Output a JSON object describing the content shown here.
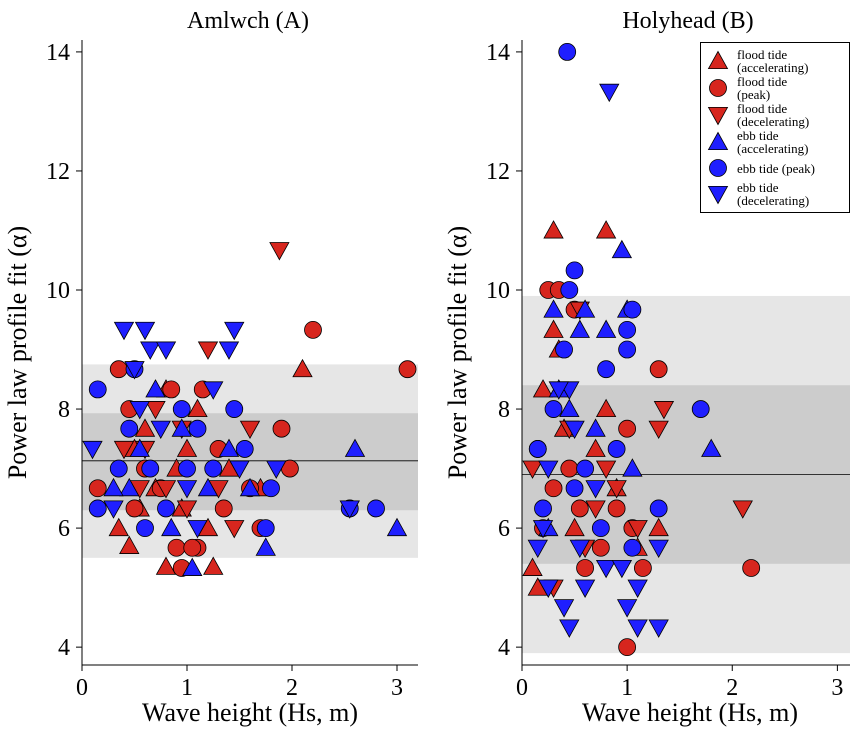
{
  "chart_data": [
    {
      "type": "scatter",
      "title": "Amlwch (A)",
      "xlabel": "Wave height (Hs, m)",
      "ylabel": "Power law profile fit (α)",
      "xlim": [
        0,
        3.2
      ],
      "ylim": [
        3.7,
        14.2
      ],
      "xticks": [
        0,
        1,
        2,
        3
      ],
      "yticks": [
        4,
        6,
        8,
        10,
        12,
        14
      ],
      "bands": [
        {
          "ymin": 5.5,
          "ymax": 8.75,
          "color": "#e6e6e6"
        },
        {
          "ymin": 6.3,
          "ymax": 7.93,
          "color": "#cccccc"
        }
      ],
      "mean_line": 7.13,
      "series": [
        {
          "marker": "triangle-up",
          "color": "#d7261e",
          "x": [
            0.45,
            0.35,
            0.8,
            1.25,
            0.55,
            0.7,
            0.9,
            1.0,
            0.6,
            0.8,
            1.4,
            2.1,
            1.7,
            1.2,
            0.5,
            1.1,
            0.95
          ],
          "y": [
            5.7,
            6.0,
            5.35,
            5.35,
            6.33,
            6.67,
            7.0,
            7.33,
            7.67,
            8.33,
            7.0,
            8.67,
            6.67,
            6.0,
            7.33,
            8.0,
            6.33
          ]
        },
        {
          "marker": "circle",
          "color": "#d7261e",
          "x": [
            0.15,
            0.35,
            0.45,
            0.9,
            0.95,
            1.1,
            1.05,
            1.15,
            0.85,
            1.35,
            1.7,
            1.9,
            1.98,
            2.2,
            3.1,
            0.6,
            0.75,
            1.3,
            0.5,
            1.6
          ],
          "y": [
            6.67,
            8.67,
            8.0,
            5.67,
            5.33,
            5.67,
            5.67,
            8.33,
            8.33,
            6.33,
            6.0,
            7.67,
            7.0,
            9.33,
            8.67,
            7.0,
            6.67,
            7.33,
            6.33,
            6.67
          ]
        },
        {
          "marker": "triangle-down",
          "color": "#d7261e",
          "x": [
            0.4,
            0.55,
            0.8,
            0.95,
            1.2,
            1.6,
            1.88,
            1.45,
            0.7,
            1.0,
            1.3,
            0.6
          ],
          "y": [
            7.33,
            6.67,
            6.67,
            7.67,
            9.0,
            7.67,
            10.67,
            6.0,
            8.0,
            6.33,
            6.67,
            7.33
          ]
        },
        {
          "marker": "triangle-up",
          "color": "#1f1fff",
          "x": [
            0.45,
            0.55,
            0.7,
            0.85,
            1.05,
            1.4,
            1.75,
            2.6,
            3.0,
            1.6,
            0.95,
            1.2,
            0.3
          ],
          "y": [
            6.67,
            7.33,
            8.33,
            6.0,
            5.33,
            7.33,
            5.67,
            7.33,
            6.0,
            6.67,
            7.67,
            6.67,
            6.67
          ]
        },
        {
          "marker": "circle",
          "color": "#1f1fff",
          "x": [
            0.15,
            0.15,
            0.45,
            0.5,
            0.65,
            0.8,
            0.95,
            1.1,
            1.25,
            1.45,
            1.55,
            1.75,
            1.8,
            2.55,
            2.8,
            1.0,
            0.6,
            0.35
          ],
          "y": [
            8.33,
            6.33,
            7.67,
            8.67,
            7.0,
            6.33,
            8.0,
            7.67,
            7.0,
            8.0,
            7.33,
            6.0,
            6.67,
            6.33,
            6.33,
            7.0,
            6.0,
            7.0
          ]
        },
        {
          "marker": "triangle-down",
          "color": "#1f1fff",
          "x": [
            0.1,
            0.4,
            0.6,
            0.5,
            0.65,
            0.8,
            1.25,
            1.45,
            1.4,
            1.5,
            1.85,
            2.55,
            0.75,
            1.0,
            0.55,
            1.1,
            0.3
          ],
          "y": [
            7.33,
            9.33,
            9.33,
            8.67,
            9.0,
            9.0,
            8.33,
            9.33,
            9.0,
            7.0,
            7.0,
            6.33,
            7.67,
            6.67,
            8.0,
            6.0,
            6.33
          ]
        }
      ]
    },
    {
      "type": "scatter",
      "title": "Holyhead (B)",
      "xlabel": "Wave height (Hs, m)",
      "ylabel": "Power law profile fit (α)",
      "xlim": [
        0,
        3.12
      ],
      "ylim": [
        3.7,
        14.2
      ],
      "xticks": [
        0,
        1,
        2,
        3
      ],
      "yticks": [
        4,
        6,
        8,
        10,
        12,
        14
      ],
      "bands": [
        {
          "ymin": 3.9,
          "ymax": 9.9,
          "color": "#e6e6e6"
        },
        {
          "ymin": 5.4,
          "ymax": 8.4,
          "color": "#cccccc"
        }
      ],
      "mean_line": 6.9,
      "legend": "upper right",
      "series": [
        {
          "name": "flood tide (accelerating)",
          "marker": "triangle-up",
          "color": "#d7261e",
          "x": [
            0.3,
            0.8,
            0.3,
            0.35,
            0.2,
            0.1,
            0.15,
            0.5,
            0.8,
            0.7,
            1.1,
            1.3,
            0.9,
            0.4
          ],
          "y": [
            11.0,
            11.0,
            9.33,
            9.0,
            8.33,
            5.33,
            5.0,
            6.0,
            8.0,
            7.33,
            5.67,
            6.0,
            6.67,
            7.67
          ]
        },
        {
          "name": "flood tide (peak)",
          "marker": "circle",
          "color": "#d7261e",
          "x": [
            0.25,
            0.35,
            1.0,
            0.5,
            0.3,
            0.2,
            0.6,
            0.75,
            1.0,
            1.05,
            1.3,
            2.18,
            0.15,
            0.9,
            1.15,
            0.45,
            0.55
          ],
          "y": [
            10.0,
            10.0,
            4.0,
            9.67,
            6.67,
            6.0,
            5.33,
            5.67,
            7.67,
            6.0,
            8.67,
            5.33,
            7.33,
            6.33,
            5.33,
            7.0,
            6.33
          ]
        },
        {
          "name": "flood tide (decelerating)",
          "marker": "triangle-down",
          "color": "#d7261e",
          "x": [
            0.55,
            0.45,
            0.7,
            0.9,
            1.35,
            1.3,
            2.1,
            0.1,
            0.3,
            0.6,
            0.8,
            1.1
          ],
          "y": [
            9.67,
            7.67,
            6.33,
            6.67,
            8.0,
            7.67,
            6.33,
            7.0,
            5.0,
            5.67,
            7.0,
            6.0
          ]
        },
        {
          "name": "ebb tide (accelerating)",
          "marker": "triangle-up",
          "color": "#1f1fff",
          "x": [
            0.35,
            0.45,
            0.55,
            0.8,
            0.95,
            1.0,
            1.8,
            0.6,
            0.7,
            0.3,
            0.25,
            1.05
          ],
          "y": [
            8.33,
            8.0,
            9.33,
            9.33,
            10.67,
            9.67,
            7.33,
            9.67,
            7.67,
            9.67,
            6.0,
            7.0
          ]
        },
        {
          "name": "ebb tide (peak)",
          "marker": "circle",
          "color": "#1f1fff",
          "x": [
            0.43,
            0.5,
            0.45,
            0.4,
            0.8,
            1.0,
            1.0,
            1.05,
            1.7,
            1.3,
            0.15,
            0.3,
            0.2,
            0.6,
            0.75,
            0.9,
            0.5,
            1.05
          ],
          "y": [
            14.0,
            10.33,
            10.0,
            9.0,
            8.67,
            9.0,
            9.33,
            9.67,
            8.0,
            6.33,
            7.33,
            8.0,
            6.33,
            7.0,
            6.0,
            7.33,
            6.67,
            5.67
          ]
        },
        {
          "name": "ebb tide (decelerating)",
          "marker": "triangle-down",
          "color": "#1f1fff",
          "x": [
            0.83,
            0.45,
            0.35,
            0.5,
            0.25,
            0.15,
            0.25,
            0.4,
            0.45,
            0.6,
            0.8,
            1.0,
            1.1,
            1.3,
            1.1,
            0.2,
            0.55,
            0.95,
            1.3,
            0.7
          ],
          "y": [
            13.33,
            8.33,
            8.33,
            7.67,
            7.0,
            5.67,
            5.0,
            4.67,
            4.33,
            5.0,
            5.33,
            4.67,
            4.33,
            4.33,
            5.0,
            6.0,
            5.67,
            5.33,
            5.67,
            6.67
          ]
        }
      ]
    }
  ]
}
